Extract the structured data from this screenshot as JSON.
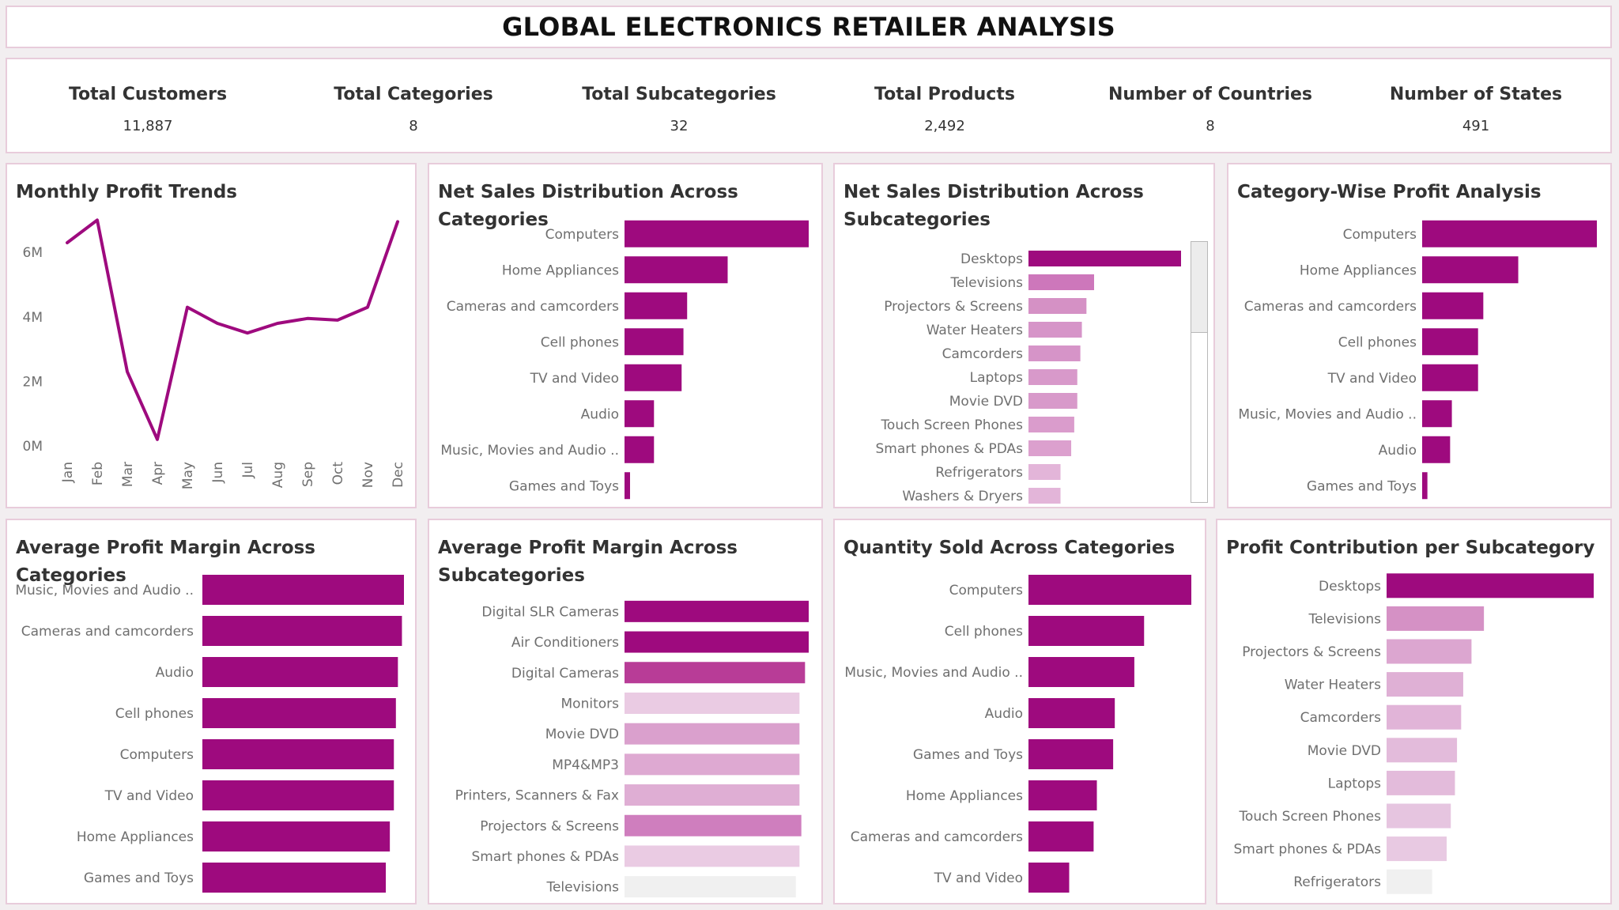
{
  "title": "GLOBAL ELECTRONICS RETAILER ANALYSIS",
  "kpis": [
    {
      "label": "Total Customers",
      "value": "11,887"
    },
    {
      "label": "Total Categories",
      "value": "8"
    },
    {
      "label": "Total Subcategories",
      "value": "32"
    },
    {
      "label": "Total Products",
      "value": "2,492"
    },
    {
      "label": "Number of Countries",
      "value": "8"
    },
    {
      "label": "Number of States",
      "value": "491"
    }
  ],
  "chart_data": [
    {
      "id": "monthly-profit",
      "type": "line",
      "title": "Monthly Profit Trends",
      "x": [
        "Jan",
        "Feb",
        "Mar",
        "Apr",
        "May",
        "Jun",
        "Jul",
        "Aug",
        "Sep",
        "Oct",
        "Nov",
        "Dec"
      ],
      "y": [
        6.3,
        7.0,
        2.3,
        0.2,
        4.3,
        3.8,
        3.5,
        3.8,
        3.95,
        3.9,
        4.3,
        6.95
      ],
      "yticks": [
        {
          "v": 0,
          "label": "0M"
        },
        {
          "v": 2,
          "label": "2M"
        },
        {
          "v": 4,
          "label": "4M"
        },
        {
          "v": 6,
          "label": "6M"
        }
      ],
      "ylim": [
        0,
        7.5
      ],
      "color": "#9e0a7e"
    },
    {
      "id": "net-sales-cat",
      "type": "bar",
      "title": "Net Sales Distribution Across Categories",
      "categories": [
        "Computers",
        "Home Appliances",
        "Cameras and camcorders",
        "Cell phones",
        "TV and Video",
        "Audio",
        "Music, Movies and Audio ..",
        "Games and Toys"
      ],
      "values": [
        100,
        56,
        34,
        32,
        31,
        16,
        16,
        3
      ],
      "colors": [
        "#9e0a7e",
        "#9e0a7e",
        "#9e0a7e",
        "#9e0a7e",
        "#9e0a7e",
        "#9e0a7e",
        "#9e0a7e",
        "#9e0a7e"
      ]
    },
    {
      "id": "net-sales-subcat",
      "type": "bar",
      "title": "Net Sales Distribution Across Subcategories",
      "categories": [
        "Desktops",
        "Televisions",
        "Projectors & Screens",
        "Water Heaters",
        "Camcorders",
        "Laptops",
        "Movie DVD",
        "Touch Screen Phones",
        "Smart phones & PDAs",
        "Refrigerators",
        "Washers & Dryers"
      ],
      "values": [
        100,
        43,
        38,
        35,
        34,
        32,
        32,
        30,
        28,
        21,
        21
      ],
      "colors": [
        "#9e0a7e",
        "#cd77bb",
        "#d591c5",
        "#d694c8",
        "#d694c8",
        "#d899ca",
        "#d899ca",
        "#da9ccc",
        "#dca0ce",
        "#e3b5d9",
        "#e3b5d9"
      ]
    },
    {
      "id": "profit-cat",
      "type": "bar",
      "title": "Category-Wise Profit Analysis",
      "categories": [
        "Computers",
        "Home Appliances",
        "Cameras and camcorders",
        "Cell phones",
        "TV and Video",
        "Music, Movies and Audio ..",
        "Audio",
        "Games and Toys"
      ],
      "values": [
        100,
        55,
        35,
        32,
        32,
        17,
        16,
        3
      ],
      "colors": [
        "#9e0a7e",
        "#9e0a7e",
        "#9e0a7e",
        "#9e0a7e",
        "#9e0a7e",
        "#9e0a7e",
        "#9e0a7e",
        "#9e0a7e"
      ]
    },
    {
      "id": "avg-margin-cat",
      "type": "bar",
      "title": "Average Profit Margin Across Categories",
      "categories": [
        "Music, Movies and Audio ..",
        "Cameras and camcorders",
        "Audio",
        "Cell phones",
        "Computers",
        "TV and Video",
        "Home Appliances",
        "Games and Toys"
      ],
      "values": [
        100,
        99,
        97,
        96,
        95,
        95,
        93,
        91
      ],
      "colors": [
        "#9e0a7e",
        "#9e0a7e",
        "#9e0a7e",
        "#9e0a7e",
        "#9e0a7e",
        "#9e0a7e",
        "#9e0a7e",
        "#9e0a7e"
      ]
    },
    {
      "id": "avg-margin-subcat",
      "type": "bar",
      "title": "Average Profit Margin Across Subcategories",
      "categories": [
        "Digital SLR Cameras",
        "Air Conditioners",
        "Digital Cameras",
        "Monitors",
        "Movie DVD",
        "MP4&MP3",
        "Printers, Scanners & Fax",
        "Projectors & Screens",
        "Smart phones & PDAs",
        "Televisions"
      ],
      "values": [
        100,
        100,
        98,
        95,
        95,
        95,
        95,
        96,
        95,
        93
      ],
      "colors": [
        "#9e0a7e",
        "#9e0a7e",
        "#b83c97",
        "#eacbe3",
        "#daa0cd",
        "#dea9d2",
        "#dfaed4",
        "#cf7ebe",
        "#eacbe3",
        "#f0f0f0"
      ]
    },
    {
      "id": "qty-cat",
      "type": "bar",
      "title": "Quantity Sold Across Categories",
      "categories": [
        "Computers",
        "Cell phones",
        "Music, Movies and Audio ..",
        "Audio",
        "Games and Toys",
        "Home Appliances",
        "Cameras and camcorders",
        "TV and Video"
      ],
      "values": [
        100,
        71,
        65,
        53,
        52,
        42,
        40,
        25
      ],
      "colors": [
        "#9e0a7e",
        "#9e0a7e",
        "#9e0a7e",
        "#9e0a7e",
        "#9e0a7e",
        "#9e0a7e",
        "#9e0a7e",
        "#9e0a7e"
      ]
    },
    {
      "id": "profit-subcat",
      "type": "bar",
      "title": "Profit Contribution per Subcategory",
      "categories": [
        "Desktops",
        "Televisions",
        "Projectors & Screens",
        "Water Heaters",
        "Camcorders",
        "Movie DVD",
        "Laptops",
        "Touch Screen Phones",
        "Smart phones & PDAs",
        "Refrigerators"
      ],
      "values": [
        100,
        47,
        41,
        37,
        36,
        34,
        33,
        31,
        29,
        22
      ],
      "colors": [
        "#9e0a7e",
        "#d591c5",
        "#dca6d0",
        "#dfb0d5",
        "#e1b4d8",
        "#e3bbdb",
        "#e3bbdb",
        "#e6c5e0",
        "#e8c9e2",
        "#f0f0f0"
      ]
    }
  ]
}
